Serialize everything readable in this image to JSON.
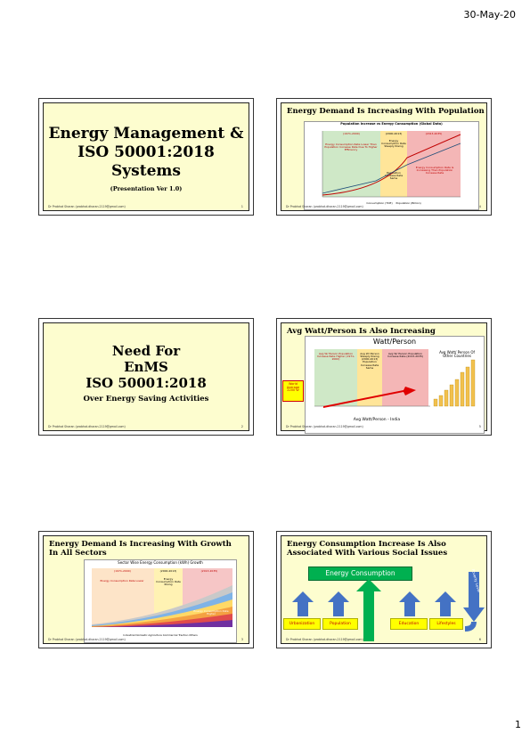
{
  "page": {
    "date": "30-May-20",
    "page_number": "1"
  },
  "footer_text": "Dr Prabhat Sharan (prabhat.dharan.2119@gmail.com)",
  "slides": [
    {
      "id": 1,
      "title_lines": [
        "Energy Management &",
        "ISO 50001:2018",
        "Systems"
      ],
      "subtitle": "(Presentation Ver 1.0)",
      "number": "1"
    },
    {
      "id": 2,
      "title": "Energy Demand Is Increasing With Population",
      "number": "4",
      "chart": {
        "heading": "Population Increase vs Energy Consumption (Global Data)",
        "periods": [
          "(1971-2000)",
          "(2000-2013)",
          "(2013-2035)"
        ],
        "notes": [
          "Energy Consumption Rate Lower Than Population Increase Rate Due To Higher Efficiency",
          "Energy Consumption Rate Steeply Rising",
          "Population Increase Rate Same",
          "Energy Consumption Rate Is Increasing Than Population Increase Rate"
        ],
        "legend": [
          "Consumption (TOE)",
          "Population (Billion)"
        ]
      }
    },
    {
      "id": 3,
      "title_lines": [
        "Need For",
        "EnMS",
        "ISO 50001:2018"
      ],
      "subtitle": "Over Energy Saving Activities",
      "number": "2"
    },
    {
      "id": 4,
      "title": "Avg Watt/Person Is Also Increasing",
      "number": "5",
      "chart": {
        "heading": "Watt/Person",
        "notes": [
          "Avg W/ Person Population Increase Rate Higher (1971-2000)",
          "Avg W/ Person Steeply Rising (2000-2013) Population Increase Rate Same",
          "Avg W/ Person Population Increase Rate (2013-2035)"
        ],
        "side_note": "Avg Watt/ Person Of Other Countries",
        "xlabel": "Avg Watt/Person - India",
        "callout": "World Average 2200 W"
      }
    },
    {
      "id": 5,
      "title": "Energy Demand Is Increasing With Growth In All Sectors",
      "number": "3",
      "chart": {
        "heading": "Sector Wise Energy Consumption (kWh) Growth",
        "periods": [
          "(1971-2000)",
          "(2000-2013)",
          "(2013-2035)"
        ],
        "notes": [
          "Energy Consumption Rate Lower",
          "Energy Consumption Rate Rising",
          "Energy Consumption Rate Higher"
        ],
        "legend": [
          "Industrial",
          "Domestic",
          "Agriculture",
          "Commercial",
          "Traction",
          "Others"
        ]
      }
    },
    {
      "id": 6,
      "title": "Energy Consumption Increase Is Also Associated With Various Social Issues",
      "number": "6",
      "diagram": {
        "center": "Energy Consumption",
        "arrow_label": "Poverty Level",
        "items": [
          "Urbanization",
          "Population",
          "Education",
          "Lifestyles"
        ]
      }
    }
  ],
  "colors": {
    "slide_bg_yellow": "#fdfdcf",
    "green_box": "#00b050",
    "yellow_box": "#ffff00",
    "blue_arrow": "#4472c4"
  }
}
